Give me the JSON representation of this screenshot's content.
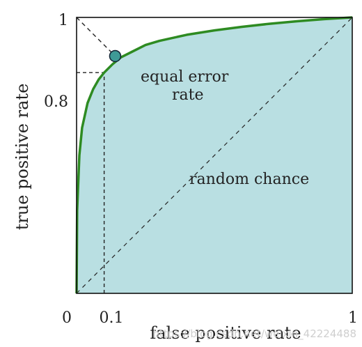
{
  "chart_data": {
    "type": "line",
    "xlabel": "false positive rate",
    "ylabel": "true positive rate",
    "xlim": [
      0,
      1
    ],
    "ylim": [
      0,
      1
    ],
    "x_ticks": [
      "0",
      "0.1",
      "1"
    ],
    "y_ticks": [
      "0.8",
      "1"
    ],
    "grid": false,
    "series": [
      {
        "x": [
          0,
          0.002,
          0.01,
          0.02,
          0.04,
          0.06,
          0.08,
          0.1,
          0.13,
          0.16,
          0.2,
          0.25,
          0.3,
          0.4,
          0.5,
          0.6,
          0.7,
          0.8,
          0.9,
          1.0
        ],
        "y": [
          0,
          0.3,
          0.5,
          0.6,
          0.69,
          0.74,
          0.775,
          0.8,
          0.83,
          0.855,
          0.875,
          0.9,
          0.915,
          0.937,
          0.953,
          0.966,
          0.977,
          0.986,
          0.994,
          1.0
        ],
        "color": "#2e8b22",
        "fill": "#b9dfe2"
      }
    ],
    "diagonal_random": {
      "label": "random chance"
    },
    "equal_error_point": {
      "x": 0.14,
      "y": 0.86,
      "label_line1": "equal error",
      "label_line2": "rate",
      "color": "#3e9a96"
    },
    "reference_point": {
      "x": 0.1,
      "y": 0.8
    }
  },
  "watermark": "https://blog.csdn.net/weixin_42224488"
}
